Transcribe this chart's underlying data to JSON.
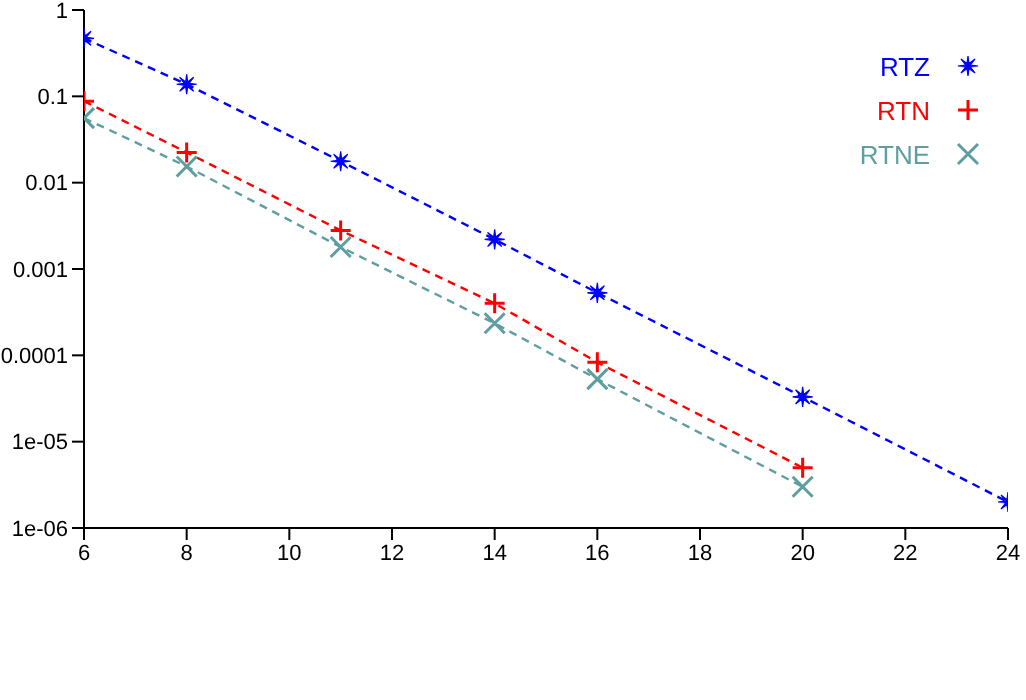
{
  "chart_data": {
    "type": "line",
    "series": [
      {
        "name": "RTZ",
        "color": "#0000ff",
        "marker": "star",
        "x": [
          6,
          8,
          11,
          14,
          16,
          20,
          24
        ],
        "values": [
          0.47,
          0.138,
          0.0177,
          0.0022,
          0.00053,
          3.3e-05,
          2e-06
        ]
      },
      {
        "name": "RTN",
        "color": "#ff0000",
        "marker": "plus",
        "x": [
          6,
          8,
          11,
          14,
          16,
          20
        ],
        "values": [
          0.088,
          0.0224,
          0.0028,
          0.0004,
          8.3e-05,
          5e-06
        ]
      },
      {
        "name": "RTNE",
        "color": "#5f9ea0",
        "marker": "cross",
        "x": [
          6,
          8,
          11,
          14,
          16,
          20
        ],
        "values": [
          0.056,
          0.0154,
          0.0018,
          0.000235,
          5.3e-05,
          3e-06
        ]
      }
    ],
    "log": "y",
    "xlim": [
      6,
      24
    ],
    "xticks": [
      6,
      8,
      10,
      12,
      14,
      16,
      18,
      20,
      22,
      24
    ],
    "ylim": [
      1e-06,
      1
    ],
    "yticks": [
      1,
      0.1,
      0.01,
      0.001,
      0.0001,
      {
        "value": 1e-05,
        "label": "1e-05"
      },
      {
        "value": 1e-06,
        "label": "1e-06"
      }
    ],
    "grid": false,
    "legend": "top right",
    "line_style": "dashed"
  }
}
